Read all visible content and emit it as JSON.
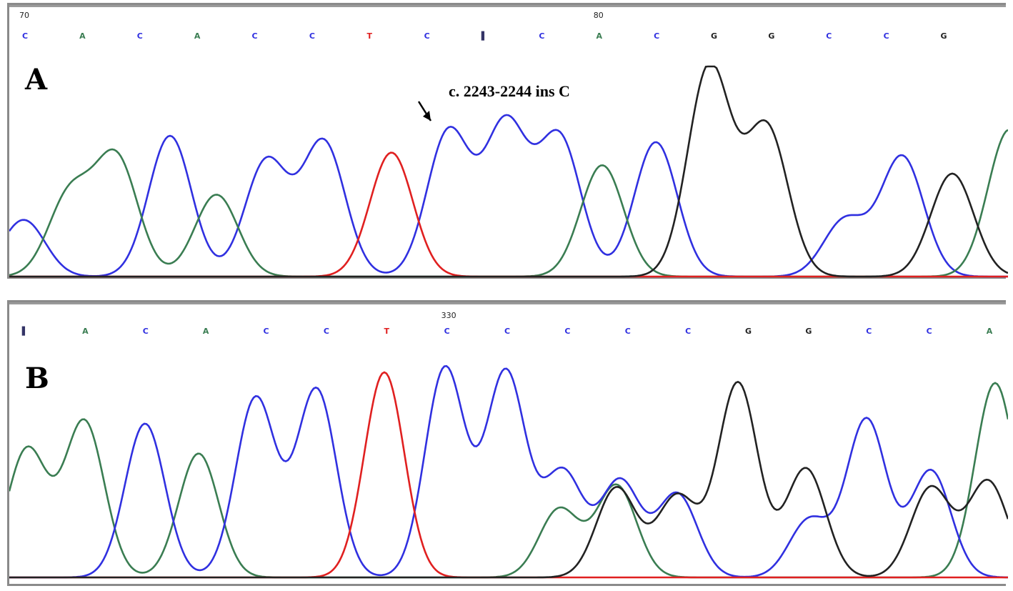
{
  "colors": {
    "A": "#3a7d52",
    "C": "#3030e0",
    "G": "#222222",
    "T": "#e02020",
    "N": "#333366"
  },
  "chart_data": [
    {
      "type": "line",
      "panel_label": "A",
      "position_markers": [
        {
          "label": "70",
          "at_base_index": 0
        },
        {
          "label": "80",
          "at_base_index": 10
        }
      ],
      "base_calls": [
        "C",
        "A",
        "C",
        "A",
        "C",
        "C",
        "T",
        "C",
        "N",
        "C",
        "A",
        "C",
        "G",
        "G",
        "C",
        "C",
        "G"
      ],
      "annotation": {
        "text": "c. 2243-2244 ins C",
        "arrow": "down-right"
      },
      "ylim": [
        0,
        100
      ],
      "peaks": {
        "C": [
          [
            20,
            27
          ],
          [
            225,
            67
          ],
          [
            360,
            55
          ],
          [
            440,
            64
          ],
          [
            615,
            69
          ],
          [
            695,
            72
          ],
          [
            770,
            66
          ],
          [
            905,
            64
          ],
          [
            1170,
            27
          ],
          [
            1250,
            57
          ]
        ],
        "A": [
          [
            85,
            39
          ],
          [
            150,
            56
          ],
          [
            290,
            39
          ],
          [
            830,
            53
          ],
          [
            1400,
            70
          ]
        ],
        "T": [
          [
            535,
            59
          ]
        ],
        "G": [
          [
            980,
            100
          ],
          [
            1060,
            71
          ],
          [
            1320,
            49
          ]
        ]
      }
    },
    {
      "type": "line",
      "panel_label": "B",
      "position_markers": [
        {
          "label": "330",
          "at_base_index": 7
        }
      ],
      "base_calls": [
        "N",
        "A",
        "C",
        "A",
        "C",
        "C",
        "T",
        "C",
        "C",
        "C",
        "C",
        "C",
        "G",
        "G",
        "C",
        "C",
        "A"
      ],
      "ylim": [
        0,
        100
      ],
      "peaks": {
        "A": [
          [
            25,
            60
          ],
          [
            105,
            73
          ],
          [
            265,
            58
          ],
          [
            770,
            32
          ],
          [
            850,
            43
          ],
          [
            1380,
            91
          ]
        ],
        "C": [
          [
            190,
            72
          ],
          [
            345,
            84
          ],
          [
            430,
            88
          ],
          [
            610,
            98
          ],
          [
            695,
            96
          ],
          [
            775,
            49
          ],
          [
            855,
            45
          ],
          [
            935,
            39
          ],
          [
            1120,
            27
          ],
          [
            1200,
            74
          ],
          [
            1290,
            50
          ]
        ],
        "T": [
          [
            525,
            96
          ]
        ],
        "G": [
          [
            850,
            42
          ],
          [
            935,
            38
          ],
          [
            1020,
            91
          ],
          [
            1115,
            51
          ],
          [
            1290,
            42
          ],
          [
            1370,
            45
          ]
        ]
      }
    }
  ]
}
